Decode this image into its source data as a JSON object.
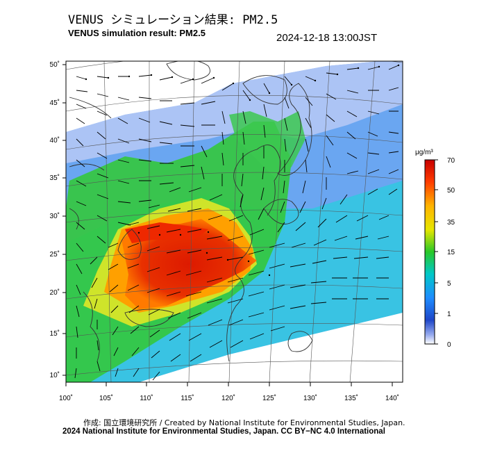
{
  "header": {
    "title_jp": "VENUS シミュレーション結果: PM2.5",
    "title_en": "VENUS simulation result: PM2.5",
    "timestamp": "2024-12-18 13:00JST"
  },
  "map": {
    "variable": "PM2.5",
    "lat_ticks": [
      "50˚",
      "45˚",
      "40˚",
      "35˚",
      "30˚",
      "25˚",
      "20˚",
      "15˚",
      "10˚"
    ],
    "lon_ticks": [
      "100˚",
      "105˚",
      "110˚",
      "115˚",
      "120˚",
      "125˚",
      "130˚",
      "135˚",
      "140˚"
    ],
    "colors": {
      "map_edge": "#000000",
      "coast": "#333333"
    }
  },
  "colorbar": {
    "unit": "μg/m³",
    "labels": [
      "70",
      "50",
      "35",
      "15",
      "5",
      "1",
      "0"
    ],
    "stops": [
      "#c80000",
      "#ff3c00",
      "#ffb400",
      "#e6e600",
      "#28c828",
      "#00c8c8",
      "#1e8cff",
      "#1e46c8",
      "#7896e6",
      "#ffffff"
    ]
  },
  "footer": {
    "credit_jp_en": "作成: 国立環境研究所 / Created by National Institute for Environmental Studies, Japan.",
    "copyright": "2024 National Institute for Environmental Studies, Japan. CC BY−NC 4.0 International"
  }
}
